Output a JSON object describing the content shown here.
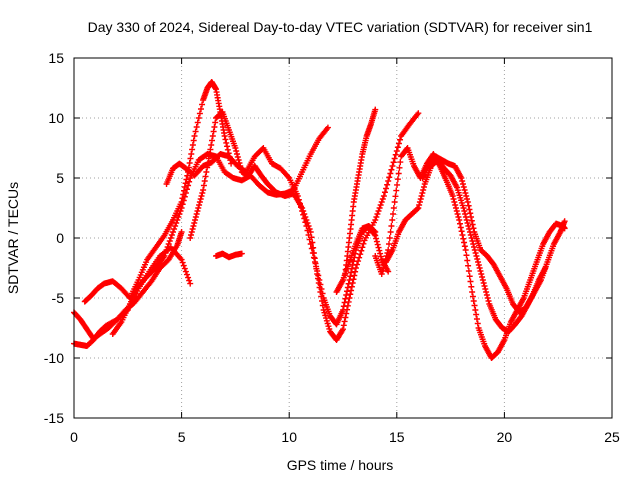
{
  "chart_data": {
    "type": "scatter",
    "title": "Day 330 of 2024, Sidereal Day-to-day VTEC variation (SDTVAR) for receiver sin1",
    "xlabel": "GPS time / hours",
    "ylabel": "SDTVAR / TECUs",
    "xlim": [
      0,
      25
    ],
    "ylim": [
      -15,
      15
    ],
    "xticks": [
      0,
      5,
      10,
      15,
      20,
      25
    ],
    "yticks": [
      -15,
      -10,
      -5,
      0,
      5,
      10,
      15
    ],
    "grid": true,
    "marker": "plus",
    "colors": {
      "series": "#ff0000",
      "axis": "#000000",
      "grid": "#a0a0a0"
    },
    "series": [
      {
        "name": "trace-1",
        "x": [
          0.0,
          0.3,
          0.6,
          0.9,
          1.2,
          1.6,
          2.0,
          2.4,
          2.8,
          3.2,
          3.6,
          4.0,
          4.4,
          4.8,
          5.0
        ],
        "y": [
          -6.2,
          -6.8,
          -7.6,
          -8.4,
          -8.0,
          -7.5,
          -6.8,
          -6.0,
          -5.4,
          -4.5,
          -3.6,
          -2.5,
          -1.8,
          -0.6,
          0.5
        ]
      },
      {
        "name": "trace-2",
        "x": [
          0.0,
          0.3,
          0.6,
          0.9,
          1.2,
          1.5,
          2.0,
          2.5,
          3.0,
          3.5,
          4.0,
          4.5,
          5.0,
          5.4
        ],
        "y": [
          -8.8,
          -8.9,
          -9.0,
          -8.5,
          -7.8,
          -7.3,
          -6.8,
          -6.0,
          -4.2,
          -2.8,
          -1.5,
          -0.8,
          -1.8,
          -3.8
        ]
      },
      {
        "name": "trace-3",
        "x": [
          0.5,
          0.8,
          1.1,
          1.4,
          1.8,
          2.2,
          2.6,
          3.0,
          3.4,
          3.8,
          4.2,
          4.6,
          5.0,
          5.3,
          5.6,
          6.0,
          6.2,
          6.4,
          6.6,
          6.8,
          7.0,
          7.3
        ],
        "y": [
          -5.3,
          -4.8,
          -4.2,
          -3.8,
          -3.6,
          -4.2,
          -5.0,
          -3.5,
          -1.8,
          -0.8,
          0.2,
          1.5,
          3.0,
          5.5,
          8.5,
          11.5,
          12.5,
          13.0,
          12.4,
          10.5,
          8.5,
          6.2
        ]
      },
      {
        "name": "trace-4",
        "x": [
          1.8,
          2.2,
          2.6,
          3.0,
          3.4,
          3.8,
          4.2,
          4.6,
          5.0,
          5.4,
          5.8,
          6.2,
          6.6,
          7.0,
          7.4,
          7.8,
          8.2,
          8.6,
          9.0,
          9.4,
          9.8,
          10.2,
          10.6,
          11.0,
          11.4,
          11.8
        ],
        "y": [
          -8.0,
          -7.0,
          -5.5,
          -4.0,
          -3.2,
          -2.5,
          -1.5,
          0.5,
          2.5,
          5.0,
          6.5,
          7.0,
          6.8,
          5.5,
          5.0,
          4.8,
          5.2,
          4.4,
          3.8,
          3.6,
          3.7,
          4.0,
          5.5,
          7.0,
          8.3,
          9.2
        ]
      },
      {
        "name": "trace-5",
        "x": [
          4.3,
          4.6,
          4.9,
          5.2,
          5.6,
          6.0,
          6.4,
          6.8,
          7.2,
          7.6,
          8.0,
          8.4,
          8.8,
          9.2,
          9.6,
          10.0,
          10.4,
          10.8,
          11.2,
          11.6,
          11.9,
          12.2,
          12.5,
          12.8,
          13.1,
          13.4,
          13.7,
          14.0
        ],
        "y": [
          4.5,
          5.8,
          6.2,
          5.8,
          5.2,
          6.0,
          6.3,
          7.0,
          6.8,
          6.0,
          5.5,
          6.8,
          7.5,
          6.2,
          5.8,
          5.0,
          3.5,
          1.0,
          -2.0,
          -5.0,
          -6.5,
          -7.2,
          -6.0,
          -3.5,
          -1.0,
          0.5,
          1.0,
          0.5
        ]
      },
      {
        "name": "trace-6",
        "x": [
          5.4,
          5.7,
          6.0,
          6.3,
          6.6,
          6.9,
          7.2,
          7.5,
          7.8,
          8.1,
          8.4,
          8.7,
          9.0,
          9.4,
          9.8,
          10.2,
          10.6,
          11.0,
          11.3,
          11.6,
          11.9,
          12.2,
          12.5,
          12.8,
          13.1,
          13.5,
          14.0,
          14.4,
          14.8,
          15.2,
          15.6,
          16.0
        ],
        "y": [
          0.0,
          2.0,
          4.0,
          7.0,
          10.0,
          10.5,
          9.0,
          7.5,
          5.5,
          5.2,
          6.0,
          5.2,
          4.5,
          3.8,
          3.5,
          3.7,
          2.5,
          0.5,
          -3.0,
          -6.0,
          -7.8,
          -8.5,
          -7.6,
          -5.0,
          -2.5,
          -0.2,
          1.5,
          3.5,
          6.0,
          8.5,
          9.5,
          10.4
        ]
      },
      {
        "name": "trace-7",
        "x": [
          6.6,
          6.9,
          7.2,
          7.5,
          7.8
        ],
        "y": [
          -1.5,
          -1.3,
          -1.6,
          -1.4,
          -1.3
        ]
      },
      {
        "name": "trace-8",
        "x": [
          12.6,
          12.8,
          13.0,
          13.2,
          13.4,
          13.6,
          13.8,
          14.0
        ],
        "y": [
          -3.0,
          0.0,
          3.0,
          5.0,
          7.0,
          8.5,
          9.5,
          10.7
        ]
      },
      {
        "name": "trace-9",
        "x": [
          14.0,
          14.3,
          14.6,
          14.9,
          15.2,
          15.5,
          15.8,
          16.1,
          16.4,
          16.7,
          17.0,
          17.3,
          17.6,
          17.9,
          18.2,
          18.5,
          18.8,
          19.1,
          19.4,
          19.7,
          20.0,
          20.3,
          20.6,
          20.9,
          21.2,
          21.5,
          21.8,
          22.1,
          22.4,
          22.7,
          22.8
        ],
        "y": [
          -1.5,
          -3.0,
          -1.0,
          3.0,
          6.8,
          7.5,
          6.0,
          5.0,
          6.2,
          7.0,
          6.0,
          4.8,
          3.5,
          1.5,
          -1.0,
          -4.5,
          -7.5,
          -9.0,
          -10.0,
          -9.5,
          -8.5,
          -7.0,
          -6.0,
          -5.0,
          -3.5,
          -2.0,
          -0.5,
          0.5,
          1.2,
          1.0,
          0.8
        ]
      },
      {
        "name": "trace-10",
        "x": [
          14.5,
          14.8,
          15.1,
          15.4,
          15.7,
          16.0,
          16.3,
          16.6,
          16.9,
          17.2,
          17.5,
          17.8,
          18.1,
          18.4,
          18.7,
          19.0,
          19.3,
          19.6,
          19.9,
          20.2,
          20.5,
          20.8,
          21.1,
          21.4,
          21.7,
          22.0,
          22.3,
          22.6,
          22.8
        ],
        "y": [
          -2.0,
          -1.0,
          0.5,
          1.5,
          2.0,
          2.5,
          4.5,
          6.0,
          6.5,
          5.8,
          5.2,
          4.2,
          2.5,
          0.5,
          -1.5,
          -3.5,
          -5.5,
          -6.8,
          -7.5,
          -7.8,
          -7.2,
          -6.5,
          -5.5,
          -4.5,
          -3.5,
          -2.0,
          -0.5,
          0.5,
          1.4
        ]
      },
      {
        "name": "trace-11",
        "x": [
          16.2,
          16.5,
          16.8,
          17.1,
          17.4,
          17.7,
          18.0,
          18.3,
          18.6,
          18.9,
          19.2,
          19.5,
          19.8,
          20.1,
          20.4,
          20.7,
          21.0,
          21.3,
          21.6,
          21.9
        ],
        "y": [
          5.0,
          6.2,
          6.8,
          6.5,
          6.2,
          6.0,
          5.0,
          3.0,
          0.5,
          -1.0,
          -1.5,
          -2.2,
          -3.2,
          -4.2,
          -5.5,
          -6.2,
          -5.8,
          -4.8,
          -3.5,
          -2.5
        ]
      },
      {
        "name": "trace-12",
        "x": [
          12.2,
          12.5,
          12.8,
          13.1,
          13.4,
          13.7,
          14.0,
          14.3,
          14.6
        ],
        "y": [
          -4.5,
          -3.5,
          -2.0,
          -0.5,
          0.8,
          1.0,
          0.2,
          -1.8,
          -2.8
        ]
      }
    ]
  }
}
